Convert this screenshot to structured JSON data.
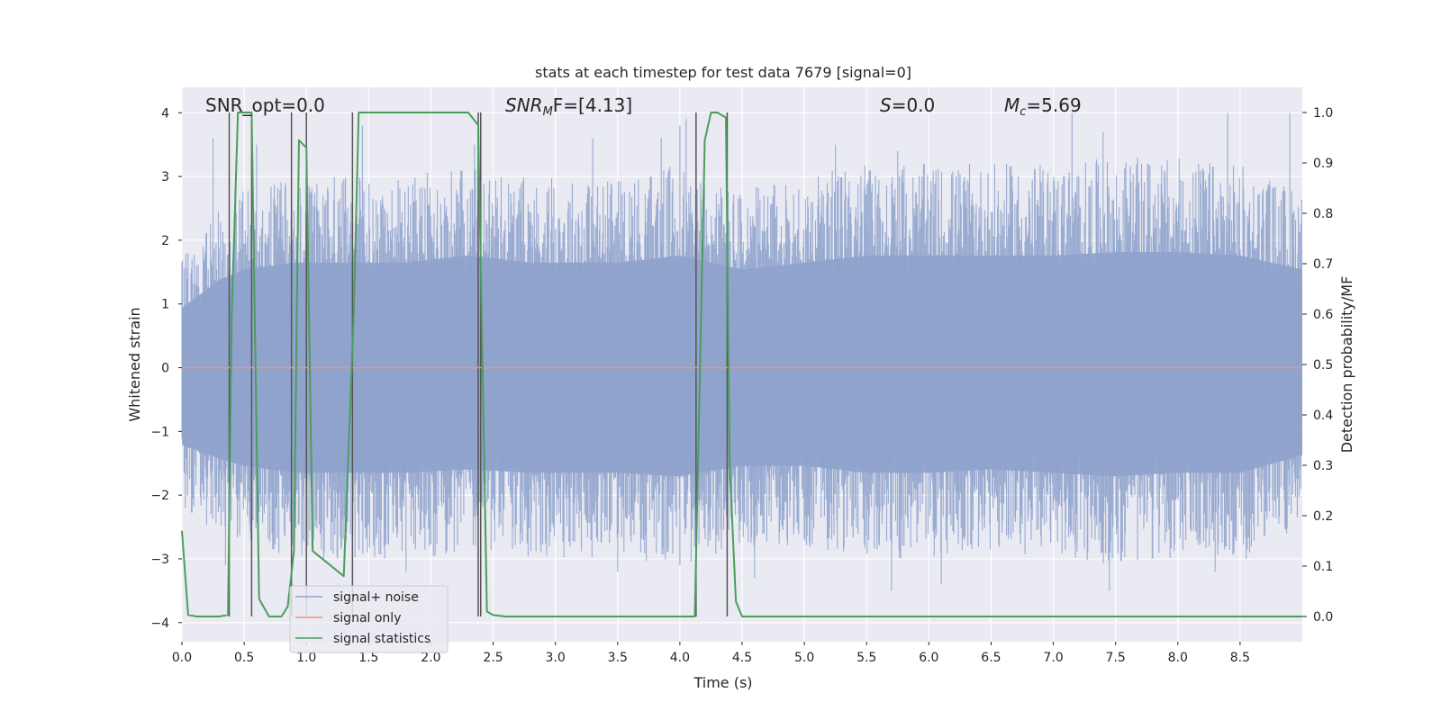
{
  "chart_data": {
    "type": "line",
    "title": "stats at each timestep for test data 7679 [signal=0]",
    "xlabel": "Time (s)",
    "ylabel": "Whitened strain",
    "y2label": "Detection probability/MF",
    "xlim": [
      0.0,
      9.0
    ],
    "ylim": [
      -4.3,
      4.4
    ],
    "y2lim": [
      -0.05,
      1.05
    ],
    "xticks": [
      "0.0",
      "0.5",
      "1.0",
      "1.5",
      "2.0",
      "2.5",
      "3.0",
      "3.5",
      "4.0",
      "4.5",
      "5.0",
      "5.5",
      "6.0",
      "6.5",
      "7.0",
      "7.5",
      "8.0",
      "8.5"
    ],
    "xtick_values": [
      0.0,
      0.5,
      1.0,
      1.5,
      2.0,
      2.5,
      3.0,
      3.5,
      4.0,
      4.5,
      5.0,
      5.5,
      6.0,
      6.5,
      7.0,
      7.5,
      8.0,
      8.5
    ],
    "yticks": [
      "4",
      "3",
      "2",
      "1",
      "0",
      "−1",
      "−2",
      "−3",
      "−4"
    ],
    "ytick_values": [
      4,
      3,
      2,
      1,
      0,
      -1,
      -2,
      -3,
      -4
    ],
    "y2ticks": [
      "1.0",
      "0.9",
      "0.8",
      "0.7",
      "0.6",
      "0.5",
      "0.4",
      "0.3",
      "0.2",
      "0.1",
      "0.0"
    ],
    "y2tick_values": [
      1.0,
      0.9,
      0.8,
      0.7,
      0.6,
      0.5,
      0.4,
      0.3,
      0.2,
      0.1,
      0.0
    ],
    "grid": true,
    "legend_position": "lower-left",
    "annotations": [
      {
        "text": "SNR_opt=0.0",
        "x": 0.2,
        "y": 4.1
      },
      {
        "text": "SNR_MF=[4.13]",
        "x": 2.6,
        "y": 4.1,
        "base": "SNR",
        "sub": "M",
        "tail": "F=[4.13]"
      },
      {
        "text": "S=0.0",
        "x": 5.6,
        "y": 4.1,
        "base": "S",
        "tail": "=0.0"
      },
      {
        "text": "M_c=5.69",
        "x": 6.6,
        "y": 4.1,
        "base": "M",
        "sub": "c",
        "tail": "=5.69"
      }
    ],
    "series": [
      {
        "name": "signal+ noise",
        "color": "#8fa3cc",
        "envelope_upper": [
          [
            0.0,
            1.7
          ],
          [
            0.3,
            2.5
          ],
          [
            0.5,
            2.8
          ],
          [
            0.9,
            3.0
          ],
          [
            1.3,
            3.0
          ],
          [
            1.8,
            3.0
          ],
          [
            2.3,
            3.2
          ],
          [
            2.8,
            3.0
          ],
          [
            3.5,
            3.0
          ],
          [
            4.0,
            3.2
          ],
          [
            4.5,
            2.8
          ],
          [
            5.0,
            3.0
          ],
          [
            5.5,
            3.2
          ],
          [
            6.0,
            3.2
          ],
          [
            6.5,
            3.2
          ],
          [
            7.0,
            3.2
          ],
          [
            7.5,
            3.3
          ],
          [
            8.0,
            3.3
          ],
          [
            8.5,
            3.2
          ],
          [
            9.0,
            2.8
          ]
        ],
        "envelope_lower": [
          [
            0.0,
            -2.2
          ],
          [
            0.3,
            -2.6
          ],
          [
            0.5,
            -2.8
          ],
          [
            0.9,
            -3.0
          ],
          [
            1.3,
            -3.0
          ],
          [
            1.8,
            -3.0
          ],
          [
            2.3,
            -2.9
          ],
          [
            2.8,
            -3.0
          ],
          [
            3.5,
            -3.0
          ],
          [
            4.0,
            -3.1
          ],
          [
            4.5,
            -2.8
          ],
          [
            5.0,
            -2.8
          ],
          [
            5.5,
            -3.0
          ],
          [
            6.0,
            -3.0
          ],
          [
            6.5,
            -2.9
          ],
          [
            7.0,
            -3.0
          ],
          [
            7.5,
            -3.1
          ],
          [
            8.0,
            -3.0
          ],
          [
            8.5,
            -3.0
          ],
          [
            9.0,
            -2.5
          ]
        ],
        "spikes": [
          [
            0.25,
            3.6
          ],
          [
            0.6,
            3.5
          ],
          [
            1.45,
            3.8
          ],
          [
            2.35,
            3.5
          ],
          [
            3.3,
            3.6
          ],
          [
            3.85,
            3.6
          ],
          [
            4.0,
            3.8
          ],
          [
            4.05,
            3.9
          ],
          [
            5.25,
            3.5
          ],
          [
            5.75,
            3.4
          ],
          [
            7.15,
            4.0
          ],
          [
            7.4,
            3.7
          ],
          [
            8.4,
            4.0
          ],
          [
            8.9,
            4.0
          ],
          [
            0.35,
            -3.1
          ],
          [
            1.25,
            -3.0
          ],
          [
            1.8,
            -3.2
          ],
          [
            2.4,
            -3.6
          ],
          [
            3.5,
            -3.2
          ],
          [
            4.0,
            -3.1
          ],
          [
            4.6,
            -3.3
          ],
          [
            5.7,
            -3.5
          ],
          [
            6.1,
            -3.4
          ],
          [
            7.45,
            -3.5
          ],
          [
            8.3,
            -3.2
          ],
          [
            8.55,
            -3.0
          ]
        ]
      },
      {
        "name": "signal only",
        "color": "#e8967a",
        "x": [
          0.0,
          9.0
        ],
        "y": [
          0.0,
          0.0
        ]
      },
      {
        "name": "signal statistics",
        "color": "#4a9e5c",
        "axis": "right",
        "x": [
          0.0,
          0.05,
          0.12,
          0.3,
          0.37,
          0.4,
          0.45,
          0.5,
          0.56,
          0.62,
          0.7,
          0.8,
          0.85,
          0.9,
          0.94,
          1.0,
          1.05,
          1.3,
          1.38,
          1.42,
          1.45,
          1.7,
          2.0,
          2.3,
          2.38,
          2.45,
          2.5,
          2.6,
          3.0,
          3.5,
          4.0,
          4.12,
          4.2,
          4.25,
          4.3,
          4.37,
          4.4,
          4.45,
          4.5,
          5.0,
          6.0,
          7.0,
          8.0,
          9.0
        ],
        "y": [
          0.17,
          0.003,
          0.0,
          0.0,
          0.003,
          0.6,
          1.0,
          1.0,
          1.0,
          0.035,
          0.0,
          0.0,
          0.02,
          0.13,
          0.945,
          0.93,
          0.13,
          0.08,
          0.6,
          1.0,
          1.0,
          1.0,
          1.0,
          1.0,
          0.975,
          0.01,
          0.003,
          0.0,
          0.0,
          0.0,
          0.0,
          0.0,
          0.945,
          1.0,
          1.0,
          0.99,
          0.3,
          0.03,
          0.0,
          0.0,
          0.0,
          0.0,
          0.0,
          0.0
        ]
      }
    ],
    "vlines": [
      0.38,
      0.56,
      0.88,
      1.0,
      1.37,
      2.38,
      2.4,
      4.13,
      4.38
    ]
  }
}
